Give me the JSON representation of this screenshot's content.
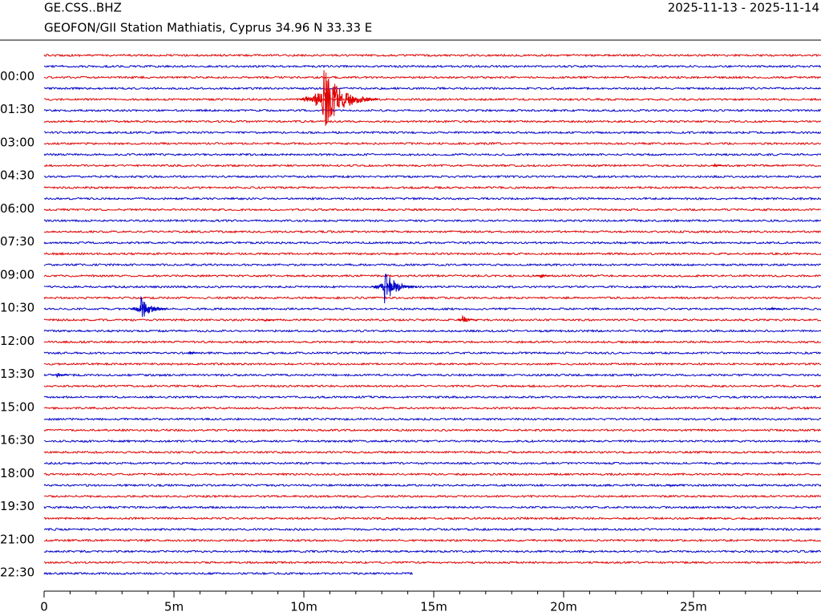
{
  "chart_data": {
    "type": "helicorder",
    "title": "GE.CSS..BHZ",
    "subtitle": "GEOFON/GII Station Mathiatis, Cyprus  34.96 N 33.33 E",
    "date_range": "2025-11-13 - 2025-11-14",
    "colors": [
      "#e00000",
      "#0000c8"
    ],
    "xlim": [
      0,
      30
    ],
    "xticks": [
      0,
      {
        "value": 5,
        "label": "5m"
      },
      {
        "value": 10,
        "label": "10m"
      },
      {
        "value": 15,
        "label": "15m"
      },
      {
        "value": 20,
        "label": "20m"
      },
      {
        "value": 25,
        "label": "25m"
      }
    ],
    "ylim": [
      -1,
      22.5
    ],
    "yticks": [
      {
        "value": 0,
        "label": "00:00"
      },
      {
        "value": 1.5,
        "label": "01:30"
      },
      {
        "value": 3,
        "label": "03:00"
      },
      {
        "value": 4.5,
        "label": "04:30"
      },
      {
        "value": 6,
        "label": "06:00"
      },
      {
        "value": 7.5,
        "label": "07:30"
      },
      {
        "value": 9,
        "label": "09:00"
      },
      {
        "value": 10.5,
        "label": "10:30"
      },
      {
        "value": 12,
        "label": "12:00"
      },
      {
        "value": 13.5,
        "label": "13:30"
      },
      {
        "value": 15,
        "label": "15:00"
      },
      {
        "value": 16.5,
        "label": "16:30"
      },
      {
        "value": 18,
        "label": "18:00"
      },
      {
        "value": 19.5,
        "label": "19:30"
      },
      {
        "value": 21,
        "label": "21:00"
      },
      {
        "value": 22.5,
        "label": "22:30"
      }
    ],
    "rows": [
      -1,
      -0.5,
      0,
      0.5,
      1,
      1.5,
      2,
      2.5,
      3,
      3.5,
      4,
      4.5,
      5,
      5.5,
      6,
      6.5,
      7,
      7.5,
      8,
      8.5,
      9,
      9.5,
      10,
      10.5,
      11,
      11.5,
      12,
      12.5,
      13,
      13.5,
      14,
      14.5,
      15,
      15.5,
      16,
      16.5,
      17,
      17.5,
      18,
      18.5,
      19,
      19.5,
      20,
      20.5,
      21,
      21.5,
      22,
      22.5
    ],
    "last_row_end": 14.2,
    "events": [
      {
        "row": 1,
        "minute": 10.7,
        "amplitude": 1.55
      },
      {
        "row": 9.5,
        "minute": 13.1,
        "amplitude": 0.8
      },
      {
        "row": 10.5,
        "minute": 3.7,
        "amplitude": 0.6
      },
      {
        "row": 11,
        "minute": 16.1,
        "amplitude": 0.25
      },
      {
        "row": 11,
        "minute": 8.5,
        "amplitude": 0.1
      },
      {
        "row": 9,
        "minute": 19.1,
        "amplitude": 0.12
      },
      {
        "row": 13.5,
        "minute": 0.5,
        "amplitude": 0.12
      },
      {
        "row": 4,
        "minute": 25.8,
        "amplitude": 0.08
      },
      {
        "row": 18.5,
        "minute": 24.1,
        "amplitude": 0.08
      },
      {
        "row": 12.5,
        "minute": 5.6,
        "amplitude": 0.08
      },
      {
        "row": 10.5,
        "minute": 28,
        "amplitude": 0.1
      }
    ]
  }
}
